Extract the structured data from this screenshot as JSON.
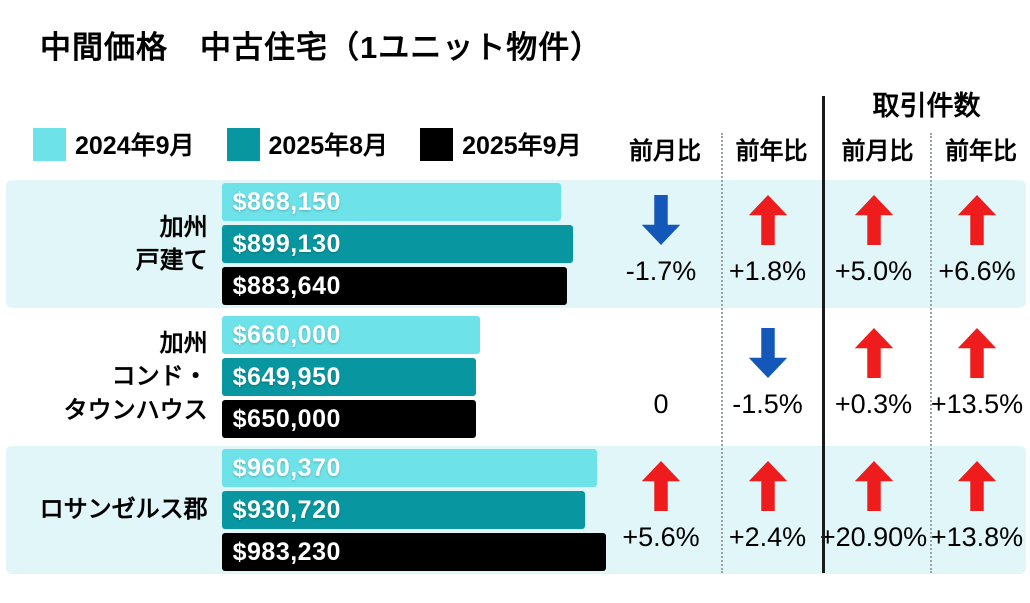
{
  "title": "中間価格　中古住宅（1ユニット物件）",
  "legend": [
    {
      "label": "2024年9月",
      "color": "#6DE2E8"
    },
    {
      "label": "2025年8月",
      "color": "#0897A0"
    },
    {
      "label": "2025年9月",
      "color": "#000000"
    }
  ],
  "columns": {
    "group_header": "取引件数",
    "headers": [
      "前月比",
      "前年比",
      "前月比",
      "前年比"
    ]
  },
  "colors": {
    "arrow_up": "#EE1C1C",
    "arrow_down": "#1357B8",
    "row_highlight_bg": "#E0F6F8"
  },
  "chart_data": {
    "type": "bar",
    "orientation": "horizontal",
    "title": "中間価格　中古住宅（1ユニット物件）",
    "series_labels": [
      "2024年9月",
      "2025年8月",
      "2025年9月"
    ],
    "max_value": 983230,
    "column_headers": [
      "前月比",
      "前年比",
      "取引件数 前月比",
      "取引件数 前年比"
    ],
    "rows": [
      {
        "category": "加州 戸建て",
        "category_lines": [
          "加州",
          "戸建て"
        ],
        "values": [
          868150,
          899130,
          883640
        ],
        "value_labels": [
          "$868,150",
          "$899,130",
          "$883,640"
        ],
        "cells": [
          {
            "arrow": "down",
            "text": "-1.7%"
          },
          {
            "arrow": "up",
            "text": "+1.8%"
          },
          {
            "arrow": "up",
            "text": "+5.0%"
          },
          {
            "arrow": "up",
            "text": "+6.6%"
          }
        ]
      },
      {
        "category": "加州 コンド・タウンハウス",
        "category_lines": [
          "加州",
          "コンド・",
          "タウンハウス"
        ],
        "values": [
          660000,
          649950,
          650000
        ],
        "value_labels": [
          "$660,000",
          "$649,950",
          "$650,000"
        ],
        "cells": [
          {
            "arrow": "none",
            "text": "0"
          },
          {
            "arrow": "down",
            "text": "-1.5%"
          },
          {
            "arrow": "up",
            "text": "+0.3%"
          },
          {
            "arrow": "up",
            "text": "+13.5%"
          }
        ]
      },
      {
        "category": "ロサンゼルス郡",
        "category_lines": [
          "ロサンゼルス郡"
        ],
        "values": [
          960370,
          930720,
          983230
        ],
        "value_labels": [
          "$960,370",
          "$930,720",
          "$983,230"
        ],
        "cells": [
          {
            "arrow": "up",
            "text": "+5.6%"
          },
          {
            "arrow": "up",
            "text": "+2.4%"
          },
          {
            "arrow": "up",
            "text": "+20.90%"
          },
          {
            "arrow": "up",
            "text": "+13.8%"
          }
        ]
      }
    ]
  }
}
